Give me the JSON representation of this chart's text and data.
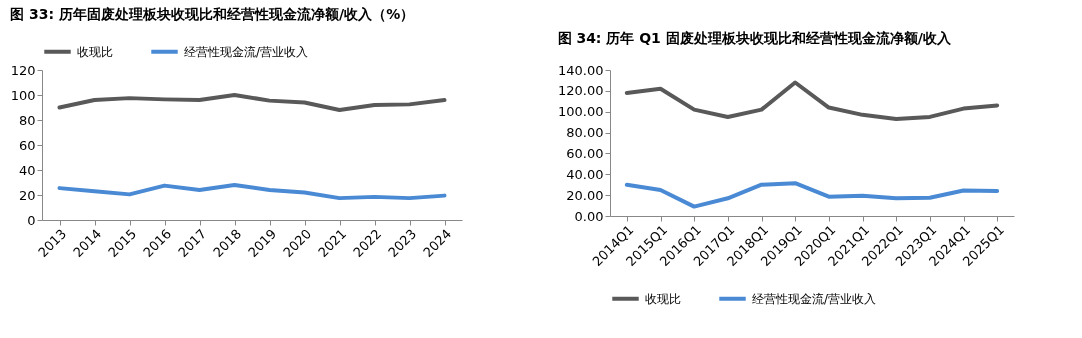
{
  "chart_data": [
    {
      "type": "line",
      "title": "图 33: 历年固废处理板块收现比和经营性现金流净额/收入（%）",
      "categories": [
        "2013",
        "2014",
        "2015",
        "2016",
        "2017",
        "2018",
        "2019",
        "2020",
        "2021",
        "2022",
        "2023",
        "2024"
      ],
      "series": [
        {
          "name": "收现比",
          "color": "#595959",
          "values": [
            90,
            96,
            97.5,
            96.5,
            96,
            100,
            95.5,
            94,
            88,
            92,
            92.5,
            96
          ]
        },
        {
          "name": "经营性现金流/营业收入",
          "color": "#4a8ad4",
          "values": [
            25.5,
            23,
            20.5,
            27.5,
            24,
            28,
            24,
            22,
            17.5,
            18.5,
            17.5,
            19.5
          ]
        }
      ],
      "ylim": [
        0,
        120
      ],
      "yticks": [
        0,
        20,
        40,
        60,
        80,
        100,
        120
      ],
      "grid": false,
      "legend": "top",
      "marker": "none",
      "line_style": "solid"
    },
    {
      "type": "line",
      "title": "图 34: 历年 Q1 固废处理板块收现比和经营性现金流净额/收入",
      "categories": [
        "2014Q1",
        "2015Q1",
        "2016Q1",
        "2017Q1",
        "2018Q1",
        "2019Q1",
        "2020Q1",
        "2021Q1",
        "2022Q1",
        "2023Q1",
        "2024Q1",
        "2025Q1"
      ],
      "series": [
        {
          "name": "收现比",
          "color": "#595959",
          "values": [
            118,
            122,
            102,
            95,
            102,
            128,
            104,
            97,
            93,
            95,
            103,
            106
          ]
        },
        {
          "name": "经营性现金流/营业收入",
          "color": "#4a8ad4",
          "values": [
            30,
            25,
            9,
            17,
            30,
            31.5,
            18.5,
            19.5,
            17,
            17.5,
            24.5,
            24
          ]
        }
      ],
      "ylim": [
        0,
        140
      ],
      "yticks": [
        {
          "value": 0,
          "label": "0.00"
        },
        {
          "value": 20,
          "label": "20.00"
        },
        {
          "value": 40,
          "label": "40.00"
        },
        {
          "value": 60,
          "label": "60.00"
        },
        {
          "value": 80,
          "label": "80.00"
        },
        {
          "value": 100,
          "label": "100.00"
        },
        {
          "value": 120,
          "label": "120.00"
        },
        {
          "value": 140,
          "label": "140.00"
        }
      ],
      "grid": false,
      "legend": "bottom",
      "marker": "none",
      "line_style": "solid"
    }
  ]
}
